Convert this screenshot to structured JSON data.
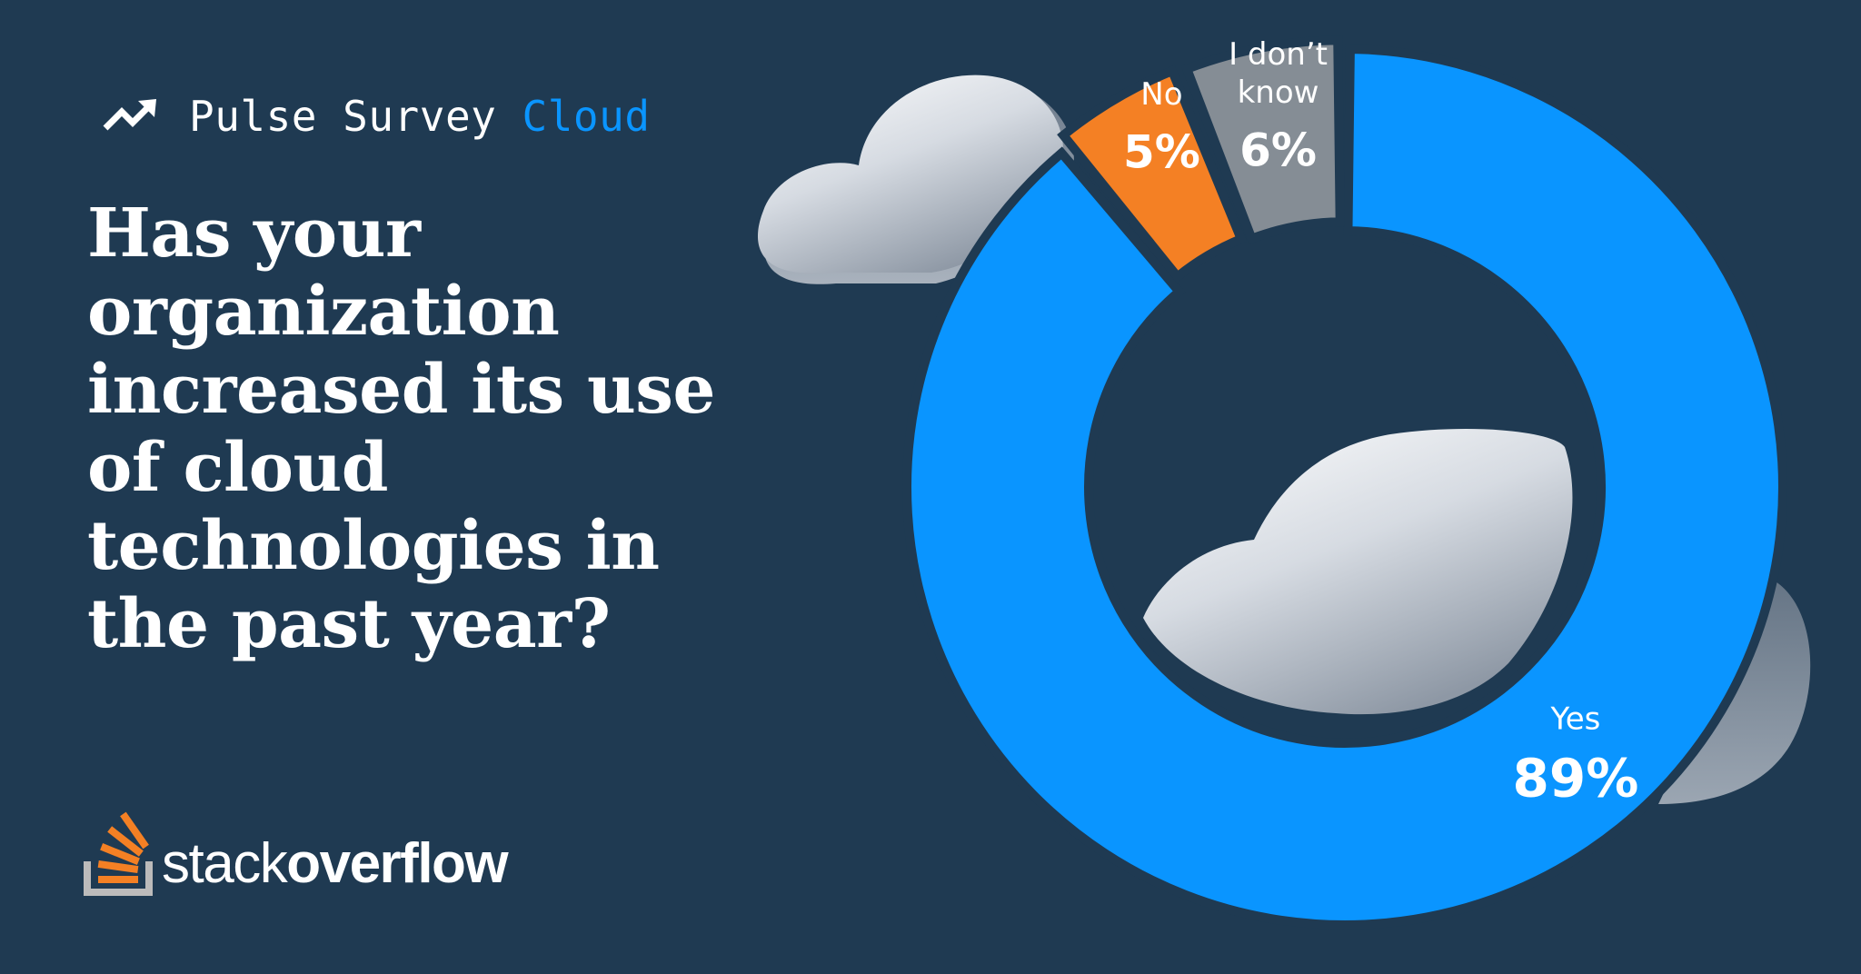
{
  "header": {
    "title": "Pulse Survey",
    "topic": "Cloud",
    "icon": "trending-up-icon"
  },
  "question": "Has your organization increased its use of cloud technologies in the past year?",
  "brand": {
    "logo_word_light": "stack",
    "logo_word_bold": "overflow",
    "logo_icon": "stack-overflow-logo-icon"
  },
  "colors": {
    "background": "#1f3a52",
    "accent_blue": "#0a95ff",
    "orange": "#f48024",
    "gray": "#858d95",
    "white": "#ffffff"
  },
  "chart_data": {
    "type": "pie",
    "style": "donut",
    "categories": [
      "Yes",
      "No",
      "I don’t know"
    ],
    "values": [
      89,
      5,
      6
    ],
    "value_labels": [
      "89%",
      "5%",
      "6%"
    ],
    "unit": "%",
    "colors": [
      "#0a95ff",
      "#f48024",
      "#858d95"
    ],
    "legend": "none"
  }
}
